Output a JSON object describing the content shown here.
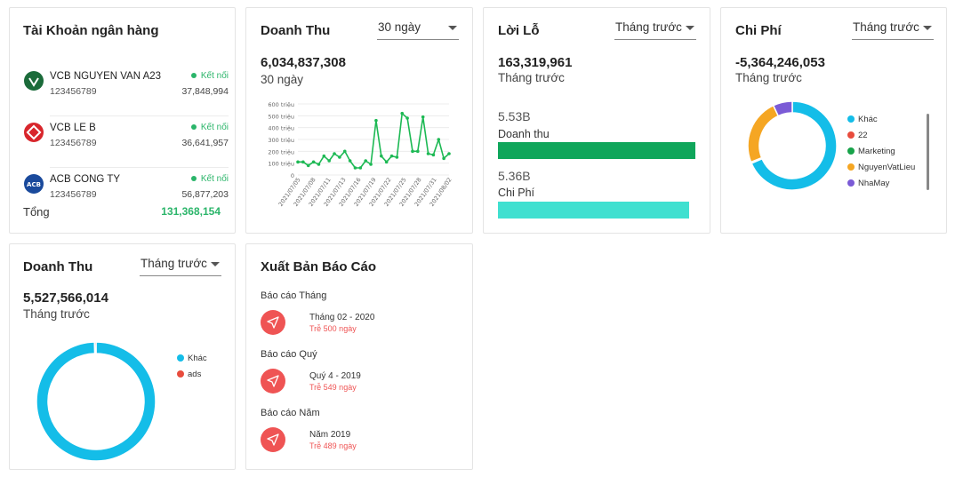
{
  "bank": {
    "title": "Tài Khoản ngân hàng",
    "accounts": [
      {
        "name": "VCB NGUYEN VAN A23",
        "number": "123456789",
        "status": "Kết nối",
        "balance": "37,848,994",
        "logo_color": "#1b6b3a"
      },
      {
        "name": "VCB LE B",
        "number": "123456789",
        "status": "Kết nối",
        "balance": "36,641,957",
        "logo_color": "#d8262c"
      },
      {
        "name": "ACB CONG TY",
        "number": "123456789",
        "status": "Kết nối",
        "balance": "56,877,203",
        "logo_color": "#1a4a9c"
      }
    ],
    "total_label": "Tổng",
    "total_value": "131,368,154",
    "icons": [
      "vcb-logo-icon",
      "vcb-logo-icon",
      "acb-logo-icon"
    ]
  },
  "revenue_30": {
    "title": "Doanh Thu",
    "period_select": "30 ngày",
    "value": "6,034,837,308",
    "period": "30 ngày"
  },
  "profit": {
    "title": "Lời Lỗ",
    "period_select": "Tháng trước",
    "value": "163,319,961",
    "period": "Tháng trước",
    "revenue_amount": "5.53B",
    "revenue_label": "Doanh thu",
    "revenue_fraction": 1.0,
    "revenue_color": "#0fa65b",
    "cost_amount": "5.36B",
    "cost_label": "Chi Phí",
    "cost_fraction": 0.97,
    "cost_color": "#40e0d0"
  },
  "expense": {
    "title": "Chi Phí",
    "period_select": "Tháng trước",
    "value": "-5,364,246,053",
    "period": "Tháng trước"
  },
  "revenue_month": {
    "title": "Doanh Thu",
    "period_select": "Tháng trước",
    "value": "5,527,566,014",
    "period": "Tháng trước"
  },
  "reports": {
    "title": "Xuất Bản Báo Cáo",
    "groups": [
      {
        "label": "Báo cáo Tháng",
        "name": "Tháng 02 - 2020",
        "late": "Trễ 500 ngày"
      },
      {
        "label": "Báo cáo Quý",
        "name": "Quý 4 - 2019",
        "late": "Trễ 549 ngày"
      },
      {
        "label": "Báo cáo Năm",
        "name": "Năm 2019",
        "late": "Trễ 489 ngày"
      }
    ],
    "icon": "send-icon"
  },
  "chart_data": [
    {
      "type": "line",
      "color": "#1db954",
      "ylim": [
        0,
        600
      ],
      "yticks": [
        "0",
        "100 triệu",
        "200 triệu",
        "300 triệu",
        "400 triệu",
        "500 triệu",
        "600 triệu"
      ],
      "xticks": [
        "2021/07/05",
        "2021/07/08",
        "2021/07/11",
        "2021/07/13",
        "2021/07/16",
        "2021/07/19",
        "2021/07/22",
        "2021/07/25",
        "2021/07/28",
        "2021/07/31",
        "2021/08/02"
      ],
      "x": [
        "2021/07/05",
        "2021/07/06",
        "2021/07/07",
        "2021/07/08",
        "2021/07/09",
        "2021/07/10",
        "2021/07/11",
        "2021/07/12",
        "2021/07/13",
        "2021/07/14",
        "2021/07/15",
        "2021/07/16",
        "2021/07/17",
        "2021/07/18",
        "2021/07/19",
        "2021/07/20",
        "2021/07/21",
        "2021/07/22",
        "2021/07/23",
        "2021/07/24",
        "2021/07/25",
        "2021/07/26",
        "2021/07/27",
        "2021/07/28",
        "2021/07/29",
        "2021/07/30",
        "2021/07/31",
        "2021/08/01",
        "2021/08/02",
        "2021/08/03"
      ],
      "values": [
        110,
        110,
        80,
        110,
        90,
        160,
        120,
        180,
        150,
        200,
        120,
        60,
        60,
        120,
        90,
        460,
        160,
        110,
        160,
        150,
        520,
        480,
        200,
        200,
        490,
        180,
        170,
        300,
        140,
        180
      ]
    },
    {
      "type": "pie",
      "donut": true,
      "categories": [
        "Khác",
        "22",
        "Marketing",
        "NguyenVatLieu",
        "NhaMay"
      ],
      "values": [
        68.5,
        0.3,
        0.2,
        24.0,
        7.0
      ],
      "colors": [
        "#14bde8",
        "#e84c3d",
        "#17a34a",
        "#f5a623",
        "#7b5bd6"
      ]
    },
    {
      "type": "pie",
      "donut": true,
      "categories": [
        "Khác",
        "ads"
      ],
      "values": [
        99.6,
        0.4
      ],
      "colors": [
        "#14bde8",
        "#e84c3d"
      ]
    }
  ]
}
